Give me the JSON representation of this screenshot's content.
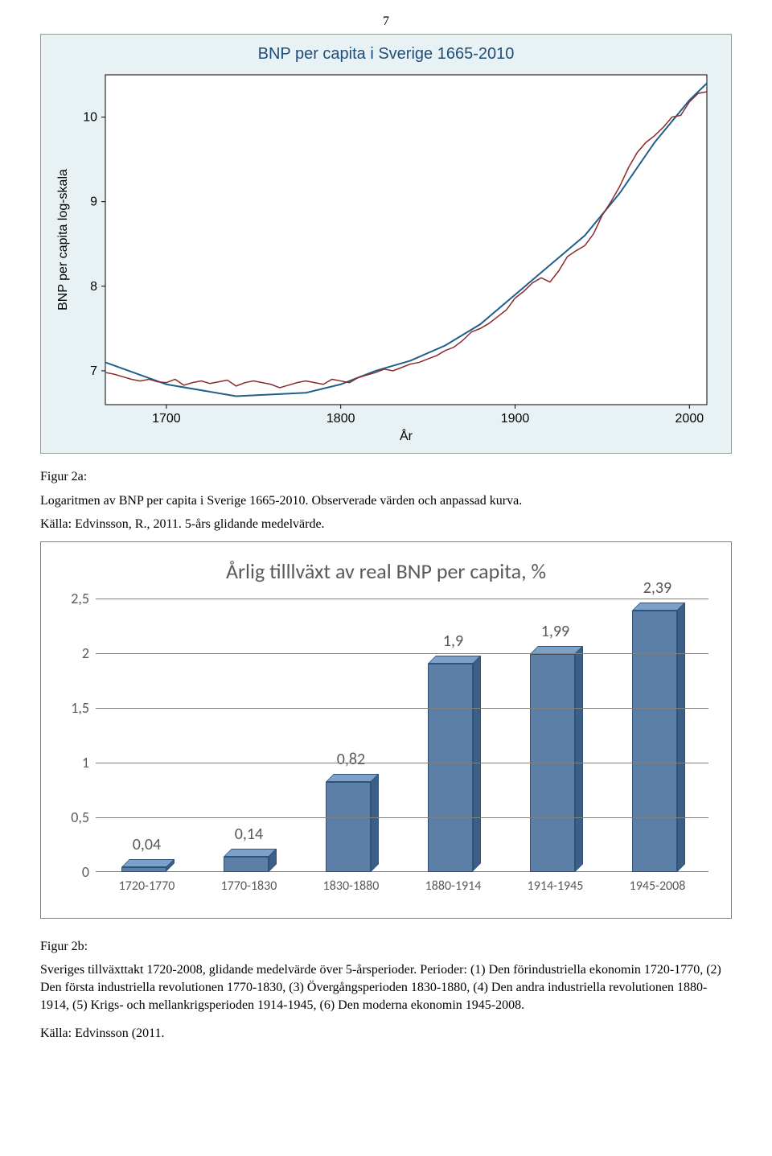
{
  "page_number": "7",
  "top_chart": {
    "type": "line",
    "title": "BNP per capita i Sverige 1665-2010",
    "title_color": "#1f4e79",
    "title_fontsize": 20,
    "xlabel": "År",
    "ylabel": "BNP per capita log-skala",
    "xlim": [
      1665,
      2010
    ],
    "ylim": [
      6.6,
      10.5
    ],
    "xticks": [
      1700,
      1800,
      1900,
      2000
    ],
    "yticks": [
      7,
      8,
      9,
      10
    ],
    "bg_color": "#e8f1f4",
    "plot_bg": "#ffffff",
    "axis_color": "#000000",
    "data_line_color": "#8b2a2a",
    "fit_line_color": "#1f5f8b",
    "data_points": [
      [
        1665,
        6.98
      ],
      [
        1670,
        6.96
      ],
      [
        1675,
        6.93
      ],
      [
        1680,
        6.9
      ],
      [
        1685,
        6.88
      ],
      [
        1690,
        6.9
      ],
      [
        1695,
        6.87
      ],
      [
        1700,
        6.86
      ],
      [
        1705,
        6.9
      ],
      [
        1710,
        6.83
      ],
      [
        1715,
        6.86
      ],
      [
        1720,
        6.88
      ],
      [
        1725,
        6.85
      ],
      [
        1730,
        6.87
      ],
      [
        1735,
        6.89
      ],
      [
        1740,
        6.82
      ],
      [
        1745,
        6.86
      ],
      [
        1750,
        6.88
      ],
      [
        1755,
        6.86
      ],
      [
        1760,
        6.84
      ],
      [
        1765,
        6.8
      ],
      [
        1770,
        6.83
      ],
      [
        1775,
        6.86
      ],
      [
        1780,
        6.88
      ],
      [
        1785,
        6.86
      ],
      [
        1790,
        6.84
      ],
      [
        1795,
        6.9
      ],
      [
        1800,
        6.88
      ],
      [
        1805,
        6.86
      ],
      [
        1810,
        6.92
      ],
      [
        1815,
        6.95
      ],
      [
        1820,
        6.98
      ],
      [
        1825,
        7.02
      ],
      [
        1830,
        7.0
      ],
      [
        1835,
        7.04
      ],
      [
        1840,
        7.08
      ],
      [
        1845,
        7.1
      ],
      [
        1850,
        7.14
      ],
      [
        1855,
        7.18
      ],
      [
        1860,
        7.24
      ],
      [
        1865,
        7.28
      ],
      [
        1870,
        7.36
      ],
      [
        1875,
        7.46
      ],
      [
        1880,
        7.5
      ],
      [
        1885,
        7.56
      ],
      [
        1890,
        7.64
      ],
      [
        1895,
        7.72
      ],
      [
        1900,
        7.86
      ],
      [
        1905,
        7.94
      ],
      [
        1910,
        8.04
      ],
      [
        1915,
        8.1
      ],
      [
        1920,
        8.05
      ],
      [
        1925,
        8.18
      ],
      [
        1930,
        8.35
      ],
      [
        1935,
        8.42
      ],
      [
        1940,
        8.48
      ],
      [
        1945,
        8.62
      ],
      [
        1950,
        8.84
      ],
      [
        1955,
        9.0
      ],
      [
        1960,
        9.18
      ],
      [
        1965,
        9.4
      ],
      [
        1970,
        9.58
      ],
      [
        1975,
        9.7
      ],
      [
        1980,
        9.78
      ],
      [
        1985,
        9.88
      ],
      [
        1990,
        10.0
      ],
      [
        1995,
        10.02
      ],
      [
        2000,
        10.18
      ],
      [
        2005,
        10.28
      ],
      [
        2010,
        10.3
      ]
    ],
    "fit_points": [
      [
        1665,
        7.1
      ],
      [
        1700,
        6.84
      ],
      [
        1740,
        6.7
      ],
      [
        1780,
        6.74
      ],
      [
        1800,
        6.84
      ],
      [
        1820,
        7.0
      ],
      [
        1840,
        7.12
      ],
      [
        1860,
        7.3
      ],
      [
        1880,
        7.55
      ],
      [
        1900,
        7.9
      ],
      [
        1920,
        8.25
      ],
      [
        1940,
        8.6
      ],
      [
        1960,
        9.1
      ],
      [
        1980,
        9.7
      ],
      [
        2000,
        10.2
      ],
      [
        2010,
        10.4
      ]
    ]
  },
  "fig2a_label": "Figur 2a:",
  "fig2a_caption": "Logaritmen av BNP per capita i Sverige 1665-2010. Observerade värden och anpassad kurva.",
  "fig2a_source": "Källa: Edvinsson, R., 2011. 5-års glidande medelvärde.",
  "bar_chart": {
    "type": "bar",
    "title": "Årlig tilllväxt av real BNP per capita, %",
    "title_color": "#595959",
    "title_fontsize": 26,
    "categories": [
      "1720-1770",
      "1770-1830",
      "1830-1880",
      "1880-1914",
      "1914-1945",
      "1945-2008"
    ],
    "values": [
      0.04,
      0.14,
      0.82,
      1.9,
      1.99,
      2.39
    ],
    "value_labels": [
      "0,04",
      "0,14",
      "0,82",
      "1,9",
      "1,99",
      "2,39"
    ],
    "bar_face_color": "#5b7fa7",
    "bar_top_color": "#7ba0c9",
    "bar_side_color": "#3e5f85",
    "bar_border_color": "#2f5279",
    "ylim": [
      0,
      2.5
    ],
    "yticks": [
      0,
      0.5,
      1,
      1.5,
      2,
      2.5
    ],
    "ytick_labels": [
      "0",
      "0,5",
      "1",
      "1,5",
      "2",
      "2,5"
    ],
    "grid_color": "#808080",
    "label_color": "#595959",
    "label_fontsize": 18
  },
  "fig2b_label": "Figur 2b:",
  "fig2b_caption": "Sveriges tillväxttakt 1720-2008, glidande medelvärde över 5-årsperioder. Perioder: (1) Den förindustriella ekonomin 1720-1770, (2) Den första industriella revolutionen 1770-1830, (3) Övergångsperioden 1830-1880, (4) Den andra industriella revolutionen 1880-1914, (5) Krigs- och mellankrigsperioden 1914-1945, (6) Den moderna ekonomin 1945-2008.",
  "fig2b_source": "Källa: Edvinsson (2011."
}
